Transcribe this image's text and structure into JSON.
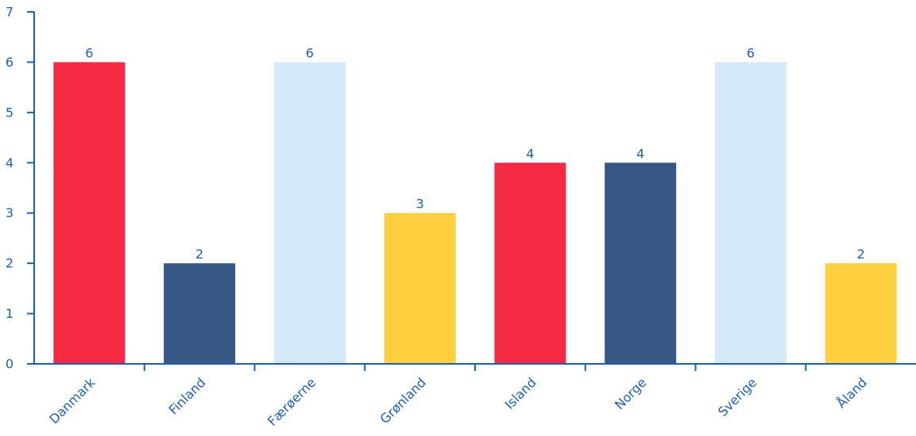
{
  "chart_data": {
    "type": "bar",
    "categories": [
      "Danmark",
      "Finland",
      "Færøerne",
      "Grønland",
      "Island",
      "Norge",
      "Sverige",
      "Åland"
    ],
    "values": [
      6,
      2,
      6,
      3,
      4,
      4,
      6,
      2
    ],
    "bar_colors": [
      "#f42a42",
      "#375785",
      "#d4e8f8",
      "#fecf3f",
      "#f42a42",
      "#375785",
      "#d4e8f8",
      "#fecf3f"
    ],
    "title": "",
    "xlabel": "",
    "ylabel": "",
    "ylim": [
      0,
      7
    ],
    "yticks": [
      0,
      1,
      2,
      3,
      4,
      5,
      6,
      7
    ],
    "grid": false,
    "legend": "none",
    "show_data_labels": true,
    "axis_color": "#1f5fb0"
  }
}
